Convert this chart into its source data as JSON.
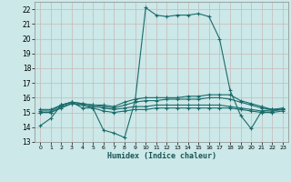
{
  "xlabel": "Humidex (Indice chaleur)",
  "bg_color": "#cce8e8",
  "grid_color": "#aacccc",
  "line_color": "#1a6b6b",
  "xlim": [
    -0.5,
    23.5
  ],
  "ylim": [
    13,
    22.5
  ],
  "yticks": [
    13,
    14,
    15,
    16,
    17,
    18,
    19,
    20,
    21,
    22
  ],
  "xticks": [
    0,
    1,
    2,
    3,
    4,
    5,
    6,
    7,
    8,
    9,
    10,
    11,
    12,
    13,
    14,
    15,
    16,
    17,
    18,
    19,
    20,
    21,
    22,
    23
  ],
  "lines": [
    {
      "x": [
        0,
        1,
        2,
        3,
        4,
        5,
        6,
        7,
        8,
        9,
        10,
        11,
        12,
        13,
        14,
        15,
        16,
        17,
        18,
        19,
        20,
        21,
        22,
        23
      ],
      "y": [
        14.1,
        14.6,
        15.5,
        15.7,
        15.3,
        15.3,
        13.8,
        13.6,
        13.3,
        15.8,
        22.1,
        21.6,
        21.5,
        21.6,
        21.6,
        21.7,
        21.5,
        20.0,
        16.5,
        14.8,
        13.9,
        15.1,
        15.2,
        15.3
      ]
    },
    {
      "x": [
        0,
        1,
        2,
        3,
        4,
        5,
        6,
        7,
        8,
        9,
        10,
        11,
        12,
        13,
        14,
        15,
        16,
        17,
        18,
        19,
        20,
        21,
        22,
        23
      ],
      "y": [
        15.1,
        15.1,
        15.5,
        15.7,
        15.6,
        15.5,
        15.5,
        15.4,
        15.7,
        15.9,
        16.0,
        16.0,
        16.0,
        16.0,
        16.1,
        16.1,
        16.2,
        16.2,
        16.2,
        15.8,
        15.6,
        15.4,
        15.2,
        15.2
      ]
    },
    {
      "x": [
        0,
        1,
        2,
        3,
        4,
        5,
        6,
        7,
        8,
        9,
        10,
        11,
        12,
        13,
        14,
        15,
        16,
        17,
        18,
        19,
        20,
        21,
        22,
        23
      ],
      "y": [
        15.0,
        15.0,
        15.4,
        15.6,
        15.5,
        15.4,
        15.3,
        15.2,
        15.3,
        15.4,
        15.4,
        15.5,
        15.5,
        15.5,
        15.5,
        15.5,
        15.5,
        15.5,
        15.4,
        15.3,
        15.2,
        15.1,
        15.1,
        15.2
      ]
    },
    {
      "x": [
        0,
        1,
        2,
        3,
        4,
        5,
        6,
        7,
        8,
        9,
        10,
        11,
        12,
        13,
        14,
        15,
        16,
        17,
        18,
        19,
        20,
        21,
        22,
        23
      ],
      "y": [
        15.2,
        15.2,
        15.5,
        15.7,
        15.6,
        15.5,
        15.4,
        15.3,
        15.5,
        15.7,
        15.8,
        15.8,
        15.9,
        15.9,
        15.9,
        15.9,
        16.0,
        16.0,
        15.9,
        15.7,
        15.5,
        15.3,
        15.2,
        15.2
      ]
    },
    {
      "x": [
        0,
        1,
        2,
        3,
        4,
        5,
        6,
        7,
        8,
        9,
        10,
        11,
        12,
        13,
        14,
        15,
        16,
        17,
        18,
        19,
        20,
        21,
        22,
        23
      ],
      "y": [
        15.0,
        15.0,
        15.3,
        15.6,
        15.5,
        15.3,
        15.1,
        15.0,
        15.1,
        15.2,
        15.2,
        15.3,
        15.3,
        15.3,
        15.3,
        15.3,
        15.3,
        15.3,
        15.3,
        15.2,
        15.1,
        15.0,
        15.0,
        15.1
      ]
    }
  ]
}
